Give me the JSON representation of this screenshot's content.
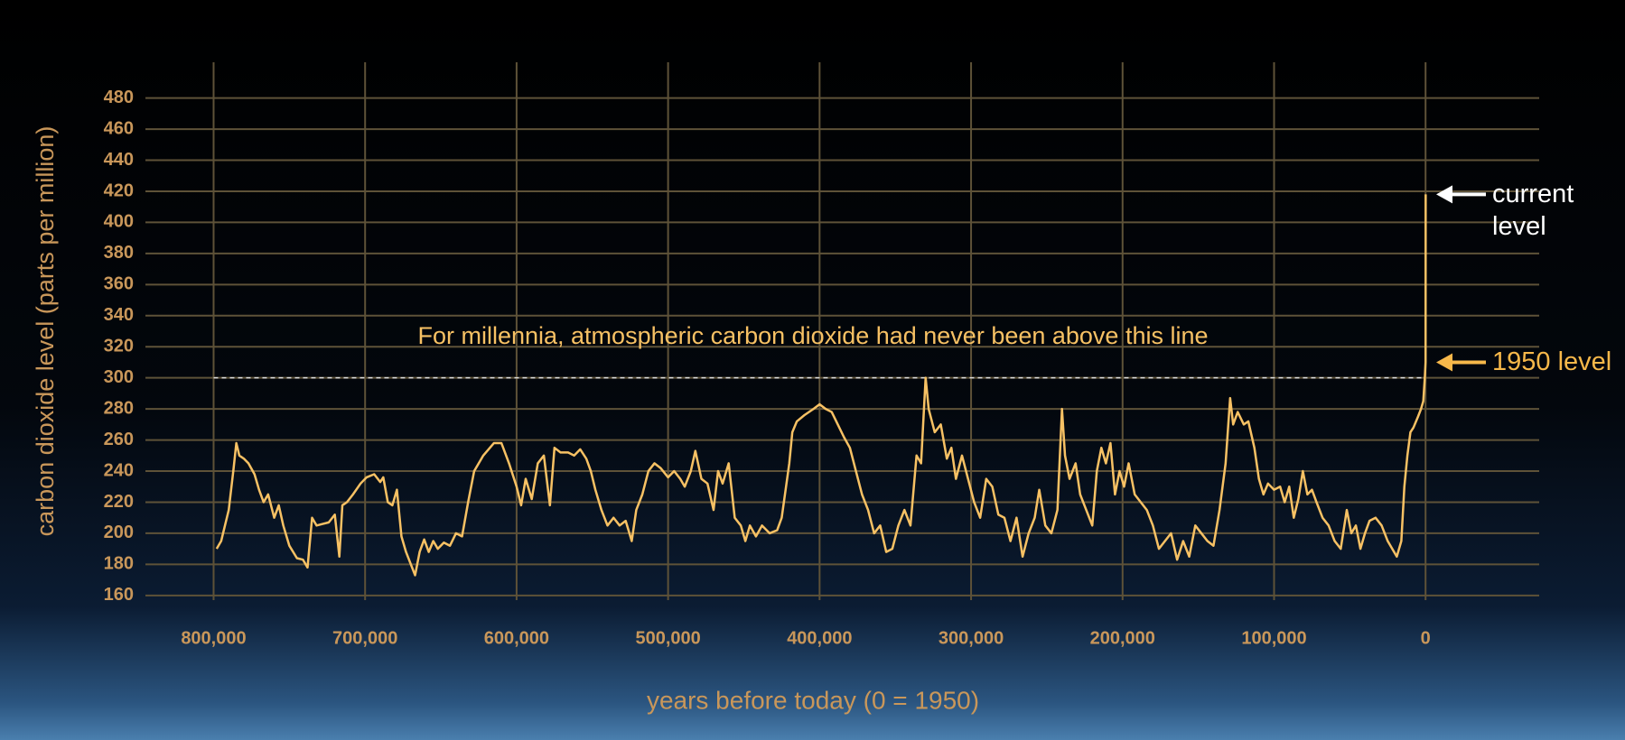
{
  "chart_data": {
    "type": "line",
    "x_label": "years before today (0 = 1950)",
    "y_label": "carbon dioxide level (parts per million)",
    "color": "#f7c164",
    "x": [
      798000,
      795000,
      790000,
      787000,
      785000,
      783000,
      780000,
      777000,
      773000,
      770000,
      767000,
      764000,
      760000,
      757000,
      754000,
      750000,
      745000,
      741000,
      738000,
      735000,
      732000,
      728000,
      724000,
      720000,
      717000,
      715000,
      712000,
      708000,
      703000,
      699000,
      694000,
      690000,
      688000,
      685000,
      682000,
      679000,
      676000,
      673000,
      669000,
      667000,
      664000,
      661000,
      658000,
      655000,
      652000,
      648000,
      644000,
      640000,
      636000,
      632000,
      628000,
      622000,
      615000,
      610000,
      605000,
      600000,
      597000,
      594000,
      590000,
      586000,
      582000,
      578000,
      575000,
      571000,
      566000,
      562000,
      558000,
      554000,
      551000,
      548000,
      544000,
      540000,
      536000,
      532000,
      528000,
      524000,
      521000,
      517000,
      513000,
      509000,
      505000,
      500000,
      496000,
      492000,
      489000,
      485000,
      482000,
      478000,
      474000,
      470000,
      467000,
      464000,
      460000,
      456000,
      452000,
      449000,
      446000,
      442000,
      438000,
      433000,
      428000,
      425000,
      420000,
      418000,
      415000,
      410000,
      404000,
      400000,
      396000,
      392000,
      388000,
      384000,
      380000,
      376000,
      372000,
      368000,
      364000,
      360000,
      356000,
      352000,
      348000,
      344000,
      340000,
      336000,
      333000,
      330000,
      328000,
      324000,
      320000,
      316000,
      313000,
      310000,
      306000,
      302000,
      298000,
      294000,
      290000,
      286000,
      282000,
      278000,
      274000,
      270000,
      266000,
      262000,
      258000,
      255000,
      251000,
      247000,
      243000,
      240000,
      238000,
      235000,
      231000,
      228000,
      224000,
      220000,
      217000,
      214000,
      211000,
      208000,
      205000,
      202000,
      199000,
      196000,
      192000,
      188000,
      184000,
      180000,
      176000,
      172000,
      168000,
      164000,
      160000,
      156000,
      152000,
      148000,
      144000,
      140000,
      136000,
      132000,
      129000,
      127000,
      124000,
      120000,
      117000,
      113000,
      110000,
      107000,
      104000,
      100000,
      96000,
      93000,
      90000,
      87000,
      84000,
      81000,
      78000,
      75000,
      72000,
      68000,
      64000,
      60000,
      56000,
      52000,
      49000,
      46000,
      43000,
      40000,
      37000,
      33000,
      29000,
      25000,
      22000,
      19000,
      16000,
      14000,
      12000,
      10000,
      8000,
      5000,
      3000,
      1500,
      500,
      0,
      -70
    ],
    "values": [
      190,
      195,
      215,
      240,
      258,
      250,
      248,
      245,
      238,
      228,
      220,
      225,
      210,
      218,
      205,
      192,
      184,
      183,
      178,
      210,
      205,
      206,
      207,
      212,
      185,
      218,
      220,
      225,
      232,
      236,
      238,
      233,
      236,
      220,
      218,
      228,
      198,
      188,
      178,
      173,
      188,
      196,
      188,
      195,
      190,
      194,
      192,
      200,
      198,
      220,
      240,
      250,
      258,
      258,
      245,
      230,
      218,
      235,
      222,
      245,
      250,
      218,
      255,
      252,
      252,
      250,
      254,
      248,
      240,
      228,
      215,
      205,
      210,
      205,
      208,
      195,
      215,
      225,
      240,
      245,
      242,
      236,
      240,
      235,
      230,
      240,
      253,
      235,
      232,
      215,
      240,
      232,
      245,
      210,
      205,
      195,
      205,
      198,
      205,
      200,
      202,
      210,
      245,
      265,
      272,
      276,
      280,
      283,
      280,
      278,
      270,
      262,
      255,
      240,
      225,
      215,
      200,
      205,
      188,
      190,
      205,
      215,
      205,
      250,
      245,
      300,
      280,
      265,
      270,
      248,
      255,
      235,
      250,
      235,
      220,
      210,
      235,
      230,
      212,
      210,
      195,
      210,
      185,
      200,
      210,
      228,
      205,
      200,
      215,
      280,
      250,
      235,
      245,
      225,
      215,
      205,
      240,
      255,
      245,
      258,
      225,
      240,
      230,
      245,
      225,
      220,
      215,
      205,
      190,
      195,
      200,
      183,
      195,
      185,
      205,
      200,
      195,
      192,
      215,
      245,
      287,
      270,
      278,
      270,
      272,
      255,
      235,
      225,
      232,
      228,
      230,
      220,
      230,
      210,
      222,
      240,
      225,
      228,
      220,
      210,
      205,
      195,
      190,
      215,
      200,
      205,
      190,
      200,
      208,
      210,
      205,
      195,
      190,
      185,
      195,
      230,
      250,
      265,
      268,
      275,
      280,
      285,
      300,
      310,
      418
    ],
    "xlim": [
      845000,
      -75000
    ],
    "ylim": [
      157,
      503
    ],
    "xticks": [
      {
        "value": 800000,
        "label": "800,000"
      },
      {
        "value": 700000,
        "label": "700,000"
      },
      {
        "value": 600000,
        "label": "600,000"
      },
      {
        "value": 500000,
        "label": "500,000"
      },
      {
        "value": 400000,
        "label": "400,000"
      },
      {
        "value": 300000,
        "label": "300,000"
      },
      {
        "value": 200000,
        "label": "200,000"
      },
      {
        "value": 100000,
        "label": "100,000"
      },
      0
    ],
    "yticks": [
      160,
      180,
      200,
      220,
      240,
      260,
      280,
      300,
      320,
      340,
      360,
      380,
      400,
      420,
      440,
      460,
      480
    ],
    "grid": true,
    "reference_line": {
      "value": 300,
      "label": "For millennia, atmospheric carbon dioxide had never been above this line"
    },
    "annotations": [
      {
        "text": "current level",
        "value": 418,
        "color": "#ffffff"
      },
      {
        "text": "1950 level",
        "value": 310,
        "color": "#f7b84a"
      }
    ]
  }
}
